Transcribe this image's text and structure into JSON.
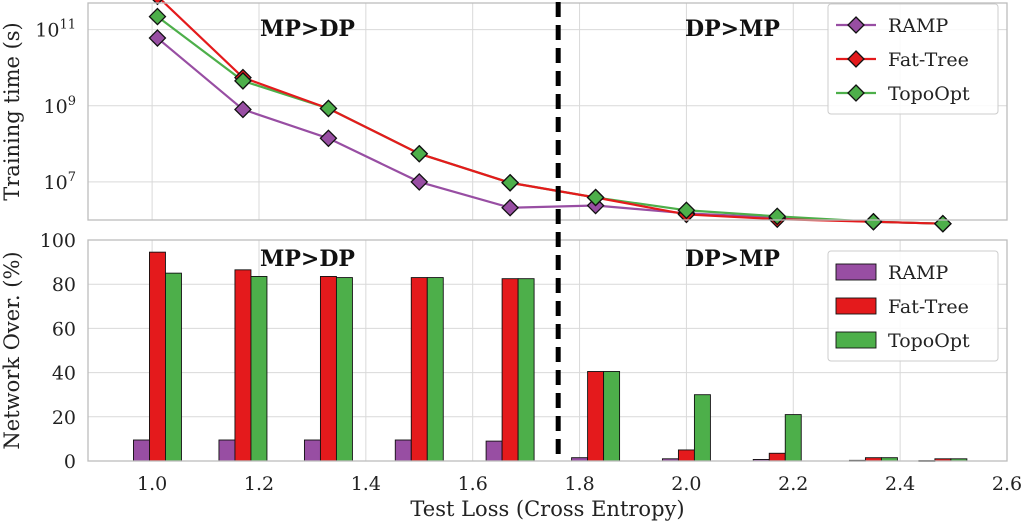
{
  "colors": {
    "RAMP": "#984ea3",
    "Fat-Tree": "#e41a1c",
    "TopoOpt": "#4daf4a",
    "divider": "#000000",
    "grid": "#d9d9d9"
  },
  "chart_data": [
    {
      "type": "line",
      "ylabel": "Training time (s)",
      "yscale": "log",
      "ylim": [
        1000000,
        500000000000
      ],
      "yticks": [
        10000000,
        1000000000,
        100000000000
      ],
      "ytick_labels": [
        {
          "base": "10",
          "exp": "7"
        },
        {
          "base": "10",
          "exp": "9"
        },
        {
          "base": "10",
          "exp": "11"
        }
      ],
      "xlim": [
        0.88,
        2.6
      ],
      "marker": "diamond",
      "grid": true,
      "legend_position": "top-right",
      "annotations": [
        {
          "text": "MP>DP",
          "side": "left"
        },
        {
          "text": "DP>MP",
          "side": "right"
        }
      ],
      "divider_x": 1.76,
      "series": [
        {
          "name": "RAMP",
          "x": [
            1.01,
            1.17,
            1.33,
            1.5,
            1.67,
            1.83,
            2.0,
            2.17,
            2.35,
            2.48
          ],
          "values": [
            60000000000,
            800000000,
            140000000,
            10000000,
            2100000,
            2400000,
            1500000,
            1150000,
            900000,
            800000
          ]
        },
        {
          "name": "Fat-Tree",
          "x": [
            1.01,
            1.17,
            1.33,
            1.5,
            1.67,
            1.83,
            2.0,
            2.17,
            2.35,
            2.48
          ],
          "values": [
            750000000000,
            5500000000,
            850000000,
            55000000,
            9500000,
            3900000,
            1400000,
            1050000,
            900000,
            800000
          ]
        },
        {
          "name": "TopoOpt",
          "x": [
            1.01,
            1.17,
            1.33,
            1.5,
            1.67,
            1.83,
            2.0,
            2.17,
            2.35,
            2.48
          ],
          "values": [
            220000000000,
            4500000000,
            850000000,
            55000000,
            9500000,
            3900000,
            1800000,
            1250000,
            900000,
            800000
          ]
        }
      ]
    },
    {
      "type": "bar",
      "xlabel": "Test Loss (Cross Entropy)",
      "ylabel": "Network Over. (%)",
      "ylim": [
        0,
        100
      ],
      "yticks": [
        0,
        20,
        40,
        60,
        80,
        100
      ],
      "xlim": [
        0.88,
        2.6
      ],
      "xticks": [
        1.0,
        1.2,
        1.4,
        1.6,
        1.8,
        2.0,
        2.2,
        2.4,
        2.6
      ],
      "xtick_labels": [
        "1.0",
        "1.2",
        "1.4",
        "1.6",
        "1.8",
        "2.0",
        "2.2",
        "2.4",
        "2.6"
      ],
      "grid": true,
      "legend_position": "top-right",
      "annotations": [
        {
          "text": "MP>DP",
          "side": "left"
        },
        {
          "text": "DP>MP",
          "side": "right"
        }
      ],
      "divider_x": 1.76,
      "categories": [
        1.01,
        1.17,
        1.33,
        1.5,
        1.67,
        1.83,
        2.0,
        2.17,
        2.35,
        2.48
      ],
      "series": [
        {
          "name": "RAMP",
          "values": [
            9.5,
            9.5,
            9.5,
            9.5,
            9.0,
            1.5,
            1.0,
            0.7,
            0.3,
            0.2
          ]
        },
        {
          "name": "Fat-Tree",
          "values": [
            94.5,
            86.5,
            83.5,
            83.0,
            82.5,
            40.5,
            5.0,
            3.5,
            1.5,
            1.0
          ]
        },
        {
          "name": "TopoOpt",
          "values": [
            85.0,
            83.5,
            83.0,
            83.0,
            82.5,
            40.5,
            30.0,
            21.0,
            1.5,
            1.0
          ]
        }
      ]
    }
  ]
}
